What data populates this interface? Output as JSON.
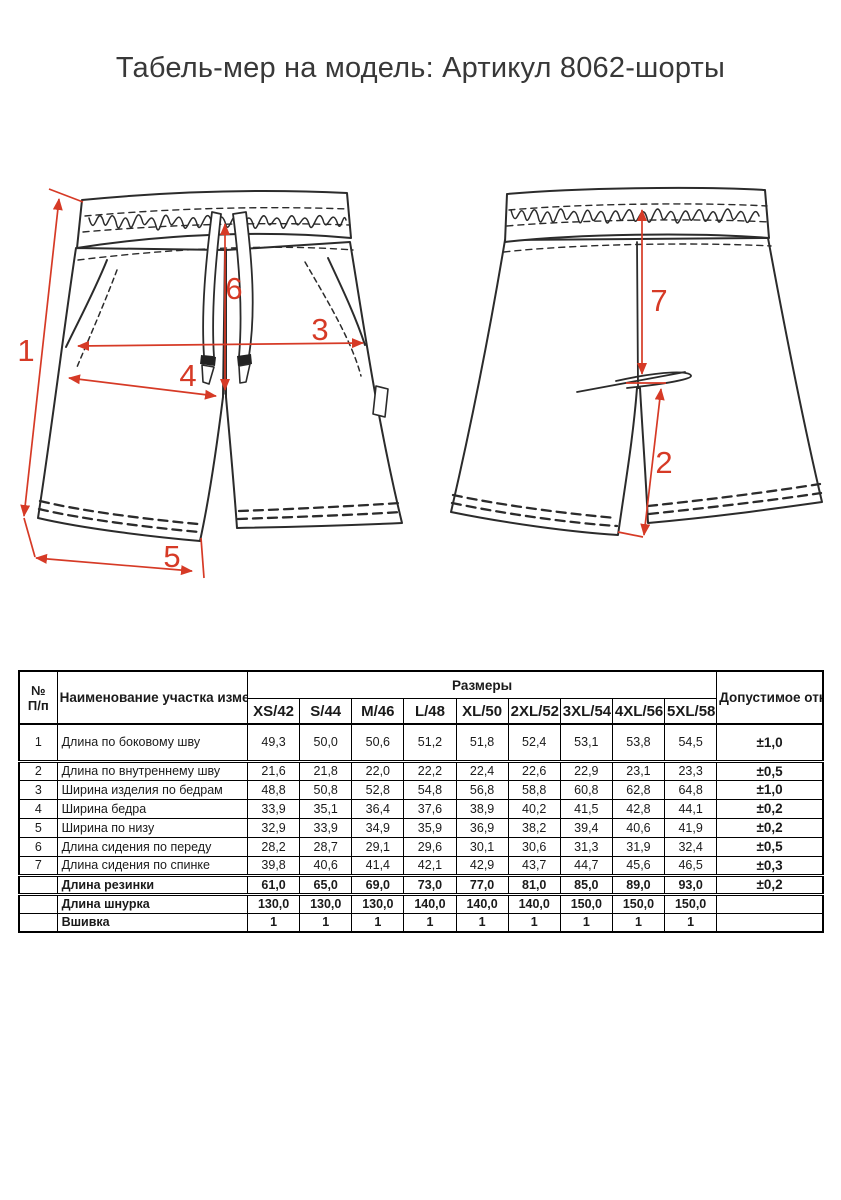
{
  "page": {
    "title": "Табель-мер на модель: Артикул 8062-шорты"
  },
  "diagram": {
    "arrow_color": "#d63a26",
    "line_color": "#2b2b2b",
    "front": {
      "dim1": "1",
      "dim3": "3",
      "dim4": "4",
      "dim5": "5",
      "dim6": "6"
    },
    "back": {
      "dim7": "7",
      "dim2": "2"
    }
  },
  "table": {
    "header": {
      "num_top": "№",
      "num_bottom": "П/п",
      "name": "Наименование участка измерения",
      "sizes_label": "Размеры",
      "sizes": [
        "XS/42",
        "S/44",
        "M/46",
        "L/48",
        "XL/50",
        "2XL/52",
        "3XL/54",
        "4XL/56",
        "5XL/58"
      ],
      "tolerance": "Допустимое отклонение, см"
    },
    "rows": [
      {
        "num": "1",
        "name": "Длина по боковому шву",
        "values": [
          "49,3",
          "50,0",
          "50,6",
          "51,2",
          "51,8",
          "52,4",
          "53,1",
          "53,8",
          "54,5"
        ],
        "tol": "±1,0"
      },
      {
        "num": "2",
        "name": "Длина по внутреннему шву",
        "values": [
          "21,6",
          "21,8",
          "22,0",
          "22,2",
          "22,4",
          "22,6",
          "22,9",
          "23,1",
          "23,3"
        ],
        "tol": "±0,5"
      },
      {
        "num": "3",
        "name": "Ширина изделия по бедрам",
        "values": [
          "48,8",
          "50,8",
          "52,8",
          "54,8",
          "56,8",
          "58,8",
          "60,8",
          "62,8",
          "64,8"
        ],
        "tol": "±1,0"
      },
      {
        "num": "4",
        "name": "Ширина бедра",
        "values": [
          "33,9",
          "35,1",
          "36,4",
          "37,6",
          "38,9",
          "40,2",
          "41,5",
          "42,8",
          "44,1"
        ],
        "tol": "±0,2"
      },
      {
        "num": "5",
        "name": "Ширина по низу",
        "values": [
          "32,9",
          "33,9",
          "34,9",
          "35,9",
          "36,9",
          "38,2",
          "39,4",
          "40,6",
          "41,9"
        ],
        "tol": "±0,2"
      },
      {
        "num": "6",
        "name": "Длина сидения по переду",
        "values": [
          "28,2",
          "28,7",
          "29,1",
          "29,6",
          "30,1",
          "30,6",
          "31,3",
          "31,9",
          "32,4"
        ],
        "tol": "±0,5"
      },
      {
        "num": "7",
        "name": "Длина сидения по спинке",
        "values": [
          "39,8",
          "40,6",
          "41,4",
          "42,1",
          "42,9",
          "43,7",
          "44,7",
          "45,6",
          "46,5"
        ],
        "tol": "±0,3"
      },
      {
        "num": "",
        "name": "Длина резинки",
        "values": [
          "61,0",
          "65,0",
          "69,0",
          "73,0",
          "77,0",
          "81,0",
          "85,0",
          "89,0",
          "93,0"
        ],
        "tol": "±0,2"
      },
      {
        "num": "",
        "name": "Длина шнурка",
        "values": [
          "130,0",
          "130,0",
          "130,0",
          "140,0",
          "140,0",
          "140,0",
          "150,0",
          "150,0",
          "150,0"
        ],
        "tol": ""
      },
      {
        "num": "",
        "name": "Вшивка",
        "values": [
          "1",
          "1",
          "1",
          "1",
          "1",
          "1",
          "1",
          "1",
          "1"
        ],
        "tol": ""
      }
    ]
  }
}
